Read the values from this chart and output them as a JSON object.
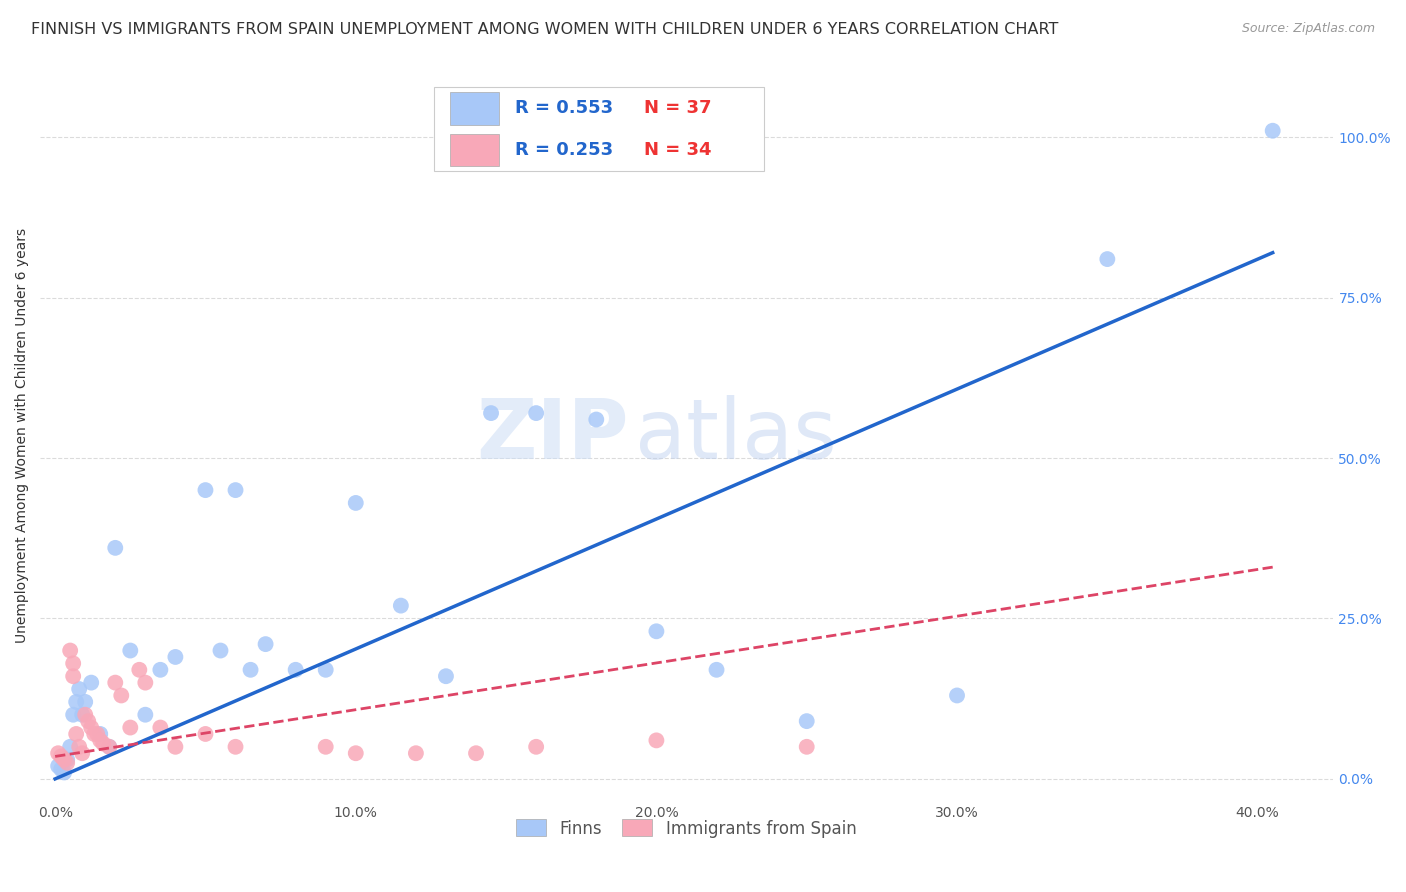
{
  "title": "FINNISH VS IMMIGRANTS FROM SPAIN UNEMPLOYMENT AMONG WOMEN WITH CHILDREN UNDER 6 YEARS CORRELATION CHART",
  "source": "Source: ZipAtlas.com",
  "ylabel": "Unemployment Among Women with Children Under 6 years",
  "xlabel_ticks": [
    "0.0%",
    "10.0%",
    "20.0%",
    "30.0%",
    "40.0%"
  ],
  "xlabel_vals": [
    0.0,
    0.1,
    0.2,
    0.3,
    0.4
  ],
  "ylabel_ticks": [
    "0.0%",
    "25.0%",
    "50.0%",
    "75.0%",
    "100.0%"
  ],
  "ylabel_vals": [
    0.0,
    0.25,
    0.5,
    0.75,
    1.0
  ],
  "xlim": [
    -0.005,
    0.425
  ],
  "ylim": [
    -0.03,
    1.1
  ],
  "finn_color": "#a8c8f8",
  "spain_color": "#f8a8b8",
  "finn_line_color": "#2266cc",
  "spain_line_color": "#dd4466",
  "background_color": "#ffffff",
  "grid_color": "#cccccc",
  "watermark_zip": "ZIP",
  "watermark_atlas": "atlas",
  "title_fontsize": 11.5,
  "axis_label_fontsize": 10,
  "tick_fontsize": 10,
  "finns_x": [
    0.001,
    0.002,
    0.003,
    0.004,
    0.005,
    0.006,
    0.007,
    0.008,
    0.009,
    0.01,
    0.012,
    0.015,
    0.018,
    0.02,
    0.025,
    0.03,
    0.035,
    0.04,
    0.05,
    0.055,
    0.06,
    0.065,
    0.07,
    0.08,
    0.09,
    0.1,
    0.115,
    0.13,
    0.145,
    0.16,
    0.18,
    0.2,
    0.22,
    0.25,
    0.3,
    0.35,
    0.405
  ],
  "finns_y": [
    0.02,
    0.015,
    0.01,
    0.03,
    0.05,
    0.1,
    0.12,
    0.14,
    0.1,
    0.12,
    0.15,
    0.07,
    0.05,
    0.36,
    0.2,
    0.1,
    0.17,
    0.19,
    0.45,
    0.2,
    0.45,
    0.17,
    0.21,
    0.17,
    0.17,
    0.43,
    0.27,
    0.16,
    0.57,
    0.57,
    0.56,
    0.23,
    0.17,
    0.09,
    0.13,
    0.81,
    1.01
  ],
  "spain_x": [
    0.001,
    0.002,
    0.003,
    0.004,
    0.005,
    0.006,
    0.006,
    0.007,
    0.008,
    0.009,
    0.01,
    0.011,
    0.012,
    0.013,
    0.014,
    0.015,
    0.016,
    0.018,
    0.02,
    0.022,
    0.025,
    0.028,
    0.03,
    0.035,
    0.04,
    0.05,
    0.06,
    0.09,
    0.1,
    0.12,
    0.14,
    0.16,
    0.2,
    0.25
  ],
  "spain_y": [
    0.04,
    0.035,
    0.03,
    0.025,
    0.2,
    0.18,
    0.16,
    0.07,
    0.05,
    0.04,
    0.1,
    0.09,
    0.08,
    0.07,
    0.07,
    0.06,
    0.055,
    0.05,
    0.15,
    0.13,
    0.08,
    0.17,
    0.15,
    0.08,
    0.05,
    0.07,
    0.05,
    0.05,
    0.04,
    0.04,
    0.04,
    0.05,
    0.06,
    0.05
  ],
  "finn_line_x0": 0.0,
  "finn_line_y0": 0.0,
  "finn_line_x1": 0.405,
  "finn_line_y1": 0.82,
  "spain_line_x0": 0.0,
  "spain_line_y0": 0.035,
  "spain_line_x1": 0.405,
  "spain_line_y1": 0.33
}
